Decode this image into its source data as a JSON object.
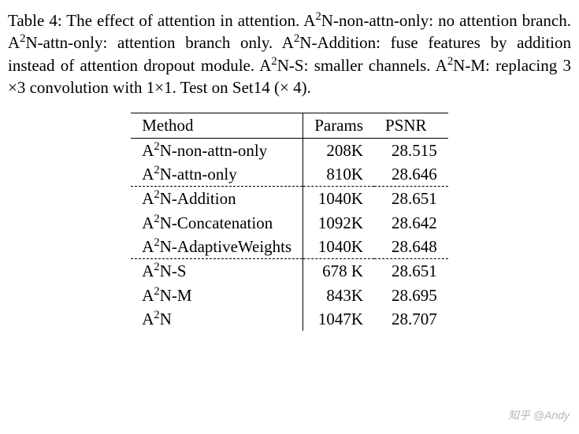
{
  "caption": {
    "prefix": "Table 4: The effect of attention in attention. ",
    "parts": [
      {
        "name": "A",
        "sup": "2",
        "suffix": "N-non-attn-only: no attention branch. "
      },
      {
        "name": "A",
        "sup": "2",
        "suffix": "N-attn-only: attention branch only. "
      },
      {
        "name": "A",
        "sup": "2",
        "suffix": "N-Addition: fuse features by addition instead of attention dropout module. "
      },
      {
        "name": "A",
        "sup": "2",
        "suffix": "N-S: smaller channels. "
      },
      {
        "name": "A",
        "sup": "2",
        "suffix": "N-M: replacing 3 ×3 convolution with 1×1. Test on Set14 (× 4)."
      }
    ]
  },
  "table": {
    "columns": [
      "Method",
      "Params",
      "PSNR"
    ],
    "groups": [
      [
        {
          "method_prefix": "A",
          "method_sup": "2",
          "method_suffix": "N-non-attn-only",
          "params": "208K",
          "psnr": "28.515"
        },
        {
          "method_prefix": "A",
          "method_sup": "2",
          "method_suffix": "N-attn-only",
          "params": "810K",
          "psnr": "28.646"
        }
      ],
      [
        {
          "method_prefix": "A",
          "method_sup": "2",
          "method_suffix": "N-Addition",
          "params": "1040K",
          "psnr": "28.651"
        },
        {
          "method_prefix": "A",
          "method_sup": "2",
          "method_suffix": "N-Concatenation",
          "params": "1092K",
          "psnr": "28.642"
        },
        {
          "method_prefix": "A",
          "method_sup": "2",
          "method_suffix": "N-AdaptiveWeights",
          "params": "1040K",
          "psnr": "28.648"
        }
      ],
      [
        {
          "method_prefix": "A",
          "method_sup": "2",
          "method_suffix": "N-S",
          "params": "678 K",
          "psnr": "28.651"
        },
        {
          "method_prefix": "A",
          "method_sup": "2",
          "method_suffix": "N-M",
          "params": "843K",
          "psnr": "28.695"
        },
        {
          "method_prefix": "A",
          "method_sup": "2",
          "method_suffix": "N",
          "params": "1047K",
          "psnr": "28.707"
        }
      ]
    ],
    "styling": {
      "font_family": "Times New Roman",
      "font_size_pt": 16,
      "border_color": "#000000",
      "dash_color": "#000000",
      "background": "#ffffff"
    }
  },
  "watermark": "知乎 @Andy"
}
